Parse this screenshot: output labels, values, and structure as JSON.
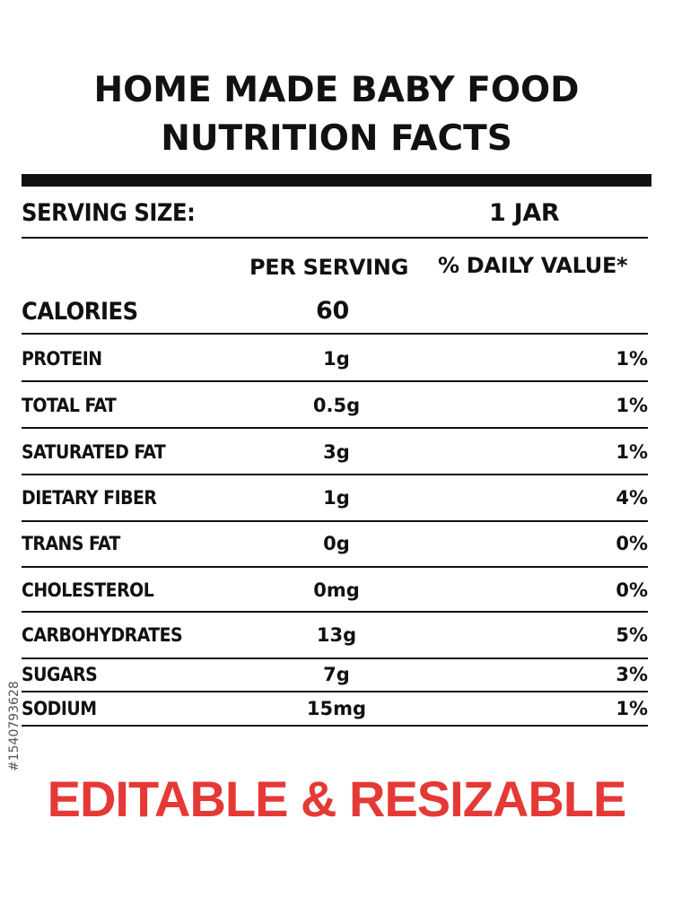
{
  "title": {
    "line1": "HOME MADE BABY FOOD",
    "line2": "NUTRITION FACTS"
  },
  "serving": {
    "label": "SERVING SIZE:",
    "value": "1 JAR"
  },
  "columns": {
    "per_serving": "PER SERVING",
    "daily_value": "% DAILY VALUE*"
  },
  "calories": {
    "label": "CALORIES",
    "value": "60"
  },
  "nutrients": [
    {
      "label": "PROTEIN",
      "value": "1g",
      "pct": "1%"
    },
    {
      "label": "TOTAL FAT",
      "value": "0.5g",
      "pct": "1%"
    },
    {
      "label": "SATURATED FAT",
      "value": "3g",
      "pct": "1%"
    },
    {
      "label": "DIETARY FIBER",
      "value": "1g",
      "pct": "4%"
    },
    {
      "label": "TRANS FAT",
      "value": "0g",
      "pct": "0%"
    },
    {
      "label": "CHOLESTEROL",
      "value": "0mg",
      "pct": "0%"
    },
    {
      "label": "CARBOHYDRATES",
      "value": "13g",
      "pct": "5%"
    },
    {
      "label": "SUGARS",
      "value": "7g",
      "pct": "3%"
    },
    {
      "label": "SODIUM",
      "value": "15mg",
      "pct": "1%"
    }
  ],
  "footer": {
    "text": "EDITABLE & RESIZABLE",
    "color": "#e53935"
  },
  "stock_id": "#1540793628"
}
